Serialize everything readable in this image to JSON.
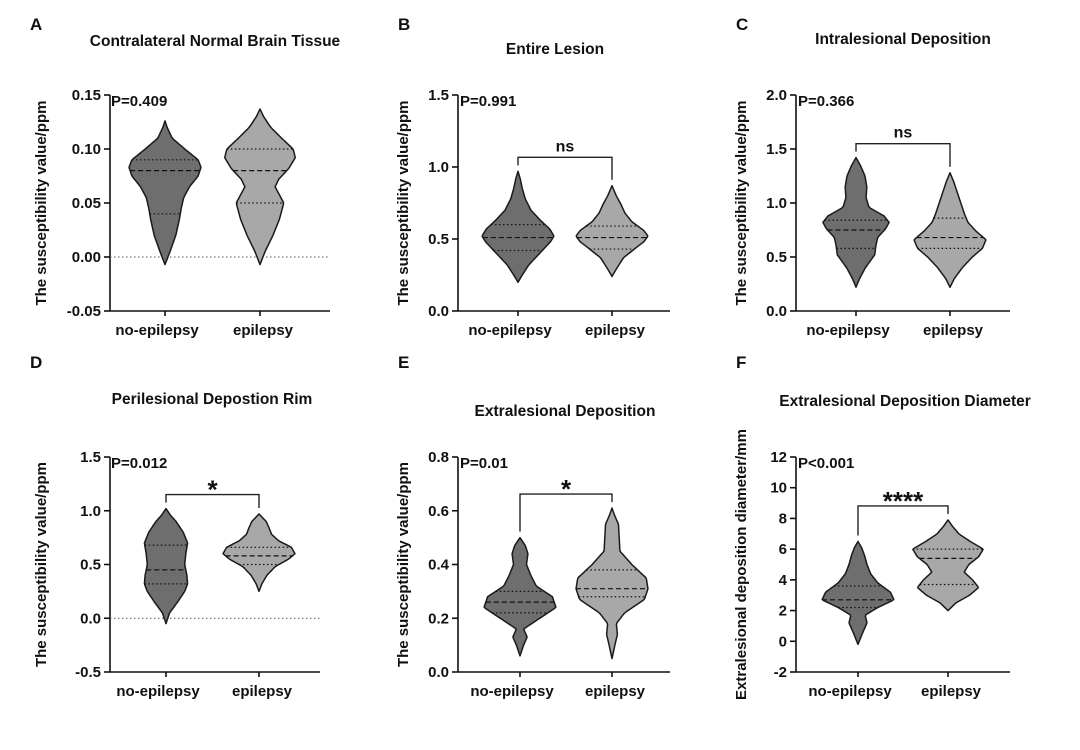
{
  "figure": {
    "colors": {
      "no_epilepsy": "#6e6e6e",
      "epilepsy": "#a8a8a8",
      "outline": "#1a1a1a"
    }
  },
  "chart_data": [
    {
      "panel": "A",
      "type": "violin",
      "title": "Contralateral Normal Brain Tissue",
      "ylabel": "The susceptibility value/ppm",
      "categories": [
        "no-epilepsy",
        "epilepsy"
      ],
      "ylim": [
        -0.05,
        0.15
      ],
      "yticks": [
        "-0.05",
        "0.00",
        "0.05",
        "0.10",
        "0.15"
      ],
      "yticks_values": [
        -0.05,
        0.0,
        0.05,
        0.1,
        0.15
      ],
      "zero_line": true,
      "p_value": "P=0.409",
      "significance": "",
      "series": [
        {
          "min": -0.007,
          "max": 0.126,
          "q1": 0.04,
          "median": 0.08,
          "q3": 0.09,
          "profile": [
            [
              -0.007,
              0.0
            ],
            [
              0.005,
              0.14
            ],
            [
              0.02,
              0.3
            ],
            [
              0.035,
              0.4
            ],
            [
              0.045,
              0.45
            ],
            [
              0.055,
              0.52
            ],
            [
              0.065,
              0.68
            ],
            [
              0.075,
              0.92
            ],
            [
              0.083,
              1.0
            ],
            [
              0.09,
              0.92
            ],
            [
              0.1,
              0.55
            ],
            [
              0.11,
              0.2
            ],
            [
              0.12,
              0.06
            ],
            [
              0.126,
              0.0
            ]
          ]
        },
        {
          "min": -0.007,
          "max": 0.137,
          "q1": 0.05,
          "median": 0.08,
          "q3": 0.1,
          "profile": [
            [
              -0.007,
              0.0
            ],
            [
              0.005,
              0.14
            ],
            [
              0.02,
              0.36
            ],
            [
              0.035,
              0.54
            ],
            [
              0.05,
              0.66
            ],
            [
              0.06,
              0.5
            ],
            [
              0.065,
              0.42
            ],
            [
              0.072,
              0.52
            ],
            [
              0.082,
              0.8
            ],
            [
              0.092,
              0.98
            ],
            [
              0.1,
              0.92
            ],
            [
              0.11,
              0.6
            ],
            [
              0.12,
              0.3
            ],
            [
              0.13,
              0.1
            ],
            [
              0.137,
              0.0
            ]
          ]
        }
      ]
    },
    {
      "panel": "B",
      "type": "violin",
      "title": "Entire Lesion",
      "ylabel": "The susceptibility value/ppm",
      "categories": [
        "no-epilepsy",
        "epilepsy"
      ],
      "ylim": [
        0.0,
        1.5
      ],
      "yticks": [
        "0.0",
        "0.5",
        "1.0",
        "1.5"
      ],
      "yticks_values": [
        0.0,
        0.5,
        1.0,
        1.5
      ],
      "zero_line": false,
      "p_value": "P=0.991",
      "significance": "ns",
      "series": [
        {
          "min": 0.2,
          "max": 0.97,
          "q1": 0.42,
          "median": 0.51,
          "q3": 0.6,
          "profile": [
            [
              0.2,
              0.0
            ],
            [
              0.25,
              0.12
            ],
            [
              0.32,
              0.3
            ],
            [
              0.4,
              0.6
            ],
            [
              0.48,
              0.9
            ],
            [
              0.52,
              1.0
            ],
            [
              0.57,
              0.88
            ],
            [
              0.63,
              0.62
            ],
            [
              0.7,
              0.36
            ],
            [
              0.78,
              0.2
            ],
            [
              0.85,
              0.12
            ],
            [
              0.92,
              0.06
            ],
            [
              0.97,
              0.0
            ]
          ]
        },
        {
          "min": 0.24,
          "max": 0.87,
          "q1": 0.43,
          "median": 0.51,
          "q3": 0.59,
          "profile": [
            [
              0.24,
              0.0
            ],
            [
              0.3,
              0.14
            ],
            [
              0.37,
              0.32
            ],
            [
              0.43,
              0.62
            ],
            [
              0.48,
              0.88
            ],
            [
              0.52,
              1.0
            ],
            [
              0.56,
              0.88
            ],
            [
              0.62,
              0.55
            ],
            [
              0.68,
              0.36
            ],
            [
              0.74,
              0.25
            ],
            [
              0.8,
              0.12
            ],
            [
              0.87,
              0.0
            ]
          ]
        }
      ]
    },
    {
      "panel": "C",
      "type": "violin",
      "title": "Intralesional Deposition",
      "ylabel": "The susceptibility value/ppm",
      "categories": [
        "no-epilepsy",
        "epilepsy"
      ],
      "ylim": [
        0.0,
        2.0
      ],
      "yticks": [
        "0.0",
        "0.5",
        "1.0",
        "1.5",
        "2.0"
      ],
      "yticks_values": [
        0.0,
        0.5,
        1.0,
        1.5,
        2.0
      ],
      "zero_line": false,
      "p_value": "P=0.366",
      "significance": "ns",
      "series": [
        {
          "min": 0.22,
          "max": 1.42,
          "q1": 0.58,
          "median": 0.75,
          "q3": 0.84,
          "profile": [
            [
              0.22,
              0.0
            ],
            [
              0.3,
              0.1
            ],
            [
              0.4,
              0.26
            ],
            [
              0.52,
              0.52
            ],
            [
              0.6,
              0.55
            ],
            [
              0.68,
              0.6
            ],
            [
              0.76,
              0.82
            ],
            [
              0.82,
              0.92
            ],
            [
              0.88,
              0.78
            ],
            [
              0.96,
              0.36
            ],
            [
              1.05,
              0.28
            ],
            [
              1.15,
              0.3
            ],
            [
              1.25,
              0.25
            ],
            [
              1.35,
              0.12
            ],
            [
              1.42,
              0.0
            ]
          ]
        },
        {
          "min": 0.22,
          "max": 1.28,
          "q1": 0.58,
          "median": 0.68,
          "q3": 0.86,
          "profile": [
            [
              0.22,
              0.0
            ],
            [
              0.3,
              0.12
            ],
            [
              0.4,
              0.34
            ],
            [
              0.5,
              0.62
            ],
            [
              0.58,
              0.9
            ],
            [
              0.66,
              1.0
            ],
            [
              0.74,
              0.72
            ],
            [
              0.82,
              0.5
            ],
            [
              0.9,
              0.4
            ],
            [
              1.0,
              0.3
            ],
            [
              1.1,
              0.2
            ],
            [
              1.2,
              0.1
            ],
            [
              1.28,
              0.0
            ]
          ]
        }
      ]
    },
    {
      "panel": "D",
      "type": "violin",
      "title": "Perilesional Depostion Rim",
      "ylabel": "The susceptibility value/ppm",
      "categories": [
        "no-epilepsy",
        "epilepsy"
      ],
      "ylim": [
        -0.5,
        1.5
      ],
      "yticks": [
        "-0.5",
        "0.0",
        "0.5",
        "1.0",
        "1.5"
      ],
      "yticks_values": [
        -0.5,
        0.0,
        0.5,
        1.0,
        1.5
      ],
      "zero_line": true,
      "p_value": "P=0.012",
      "significance": "*",
      "series": [
        {
          "min": -0.05,
          "max": 1.02,
          "q1": 0.32,
          "median": 0.45,
          "q3": 0.68,
          "profile": [
            [
              -0.05,
              0.0
            ],
            [
              0.05,
              0.1
            ],
            [
              0.15,
              0.32
            ],
            [
              0.25,
              0.52
            ],
            [
              0.32,
              0.6
            ],
            [
              0.4,
              0.58
            ],
            [
              0.5,
              0.52
            ],
            [
              0.6,
              0.55
            ],
            [
              0.7,
              0.6
            ],
            [
              0.8,
              0.48
            ],
            [
              0.9,
              0.28
            ],
            [
              0.96,
              0.12
            ],
            [
              1.02,
              0.0
            ]
          ]
        },
        {
          "min": 0.25,
          "max": 0.97,
          "q1": 0.5,
          "median": 0.58,
          "q3": 0.66,
          "profile": [
            [
              0.25,
              0.0
            ],
            [
              0.32,
              0.08
            ],
            [
              0.4,
              0.22
            ],
            [
              0.48,
              0.45
            ],
            [
              0.55,
              0.82
            ],
            [
              0.6,
              1.0
            ],
            [
              0.66,
              0.9
            ],
            [
              0.72,
              0.55
            ],
            [
              0.78,
              0.35
            ],
            [
              0.84,
              0.28
            ],
            [
              0.9,
              0.2
            ],
            [
              0.97,
              0.0
            ]
          ]
        }
      ]
    },
    {
      "panel": "E",
      "type": "violin",
      "title": "Extralesional Deposition",
      "ylabel": "The susceptibility value/ppm",
      "categories": [
        "no-epilepsy",
        "epilepsy"
      ],
      "ylim": [
        0.0,
        0.8
      ],
      "yticks": [
        "0.0",
        "0.2",
        "0.4",
        "0.6",
        "0.8"
      ],
      "yticks_values": [
        0.0,
        0.2,
        0.4,
        0.6,
        0.8
      ],
      "zero_line": false,
      "p_value": "P=0.01",
      "significance": "*",
      "series": [
        {
          "min": 0.06,
          "max": 0.5,
          "q1": 0.22,
          "median": 0.26,
          "q3": 0.3,
          "profile": [
            [
              0.06,
              0.0
            ],
            [
              0.1,
              0.1
            ],
            [
              0.13,
              0.2
            ],
            [
              0.16,
              0.1
            ],
            [
              0.2,
              0.55
            ],
            [
              0.24,
              1.0
            ],
            [
              0.28,
              0.9
            ],
            [
              0.32,
              0.45
            ],
            [
              0.36,
              0.3
            ],
            [
              0.4,
              0.18
            ],
            [
              0.44,
              0.22
            ],
            [
              0.47,
              0.15
            ],
            [
              0.5,
              0.0
            ]
          ]
        },
        {
          "min": 0.05,
          "max": 0.61,
          "q1": 0.28,
          "median": 0.31,
          "q3": 0.38,
          "profile": [
            [
              0.05,
              0.0
            ],
            [
              0.1,
              0.08
            ],
            [
              0.14,
              0.15
            ],
            [
              0.18,
              0.12
            ],
            [
              0.22,
              0.35
            ],
            [
              0.27,
              0.9
            ],
            [
              0.31,
              1.0
            ],
            [
              0.35,
              0.95
            ],
            [
              0.4,
              0.55
            ],
            [
              0.45,
              0.22
            ],
            [
              0.5,
              0.2
            ],
            [
              0.55,
              0.18
            ],
            [
              0.58,
              0.08
            ],
            [
              0.61,
              0.0
            ]
          ]
        }
      ]
    },
    {
      "panel": "F",
      "type": "violin",
      "title": "Extralesional Deposition Diameter",
      "ylabel": "Extralesional deposition diameter/mm",
      "categories": [
        "no-epilepsy",
        "epilepsy"
      ],
      "ylim": [
        -2,
        12
      ],
      "yticks": [
        "-2",
        "0",
        "2",
        "4",
        "6",
        "8",
        "10",
        "12"
      ],
      "yticks_values": [
        -2,
        0,
        2,
        4,
        6,
        8,
        10,
        12
      ],
      "zero_line": false,
      "p_value": "P<0.001",
      "significance": "****",
      "series": [
        {
          "min": -0.2,
          "max": 6.5,
          "q1": 2.2,
          "median": 2.7,
          "q3": 3.6,
          "profile": [
            [
              -0.2,
              0.0
            ],
            [
              0.5,
              0.12
            ],
            [
              1.2,
              0.25
            ],
            [
              1.7,
              0.2
            ],
            [
              2.2,
              0.55
            ],
            [
              2.7,
              1.0
            ],
            [
              3.2,
              0.9
            ],
            [
              3.8,
              0.55
            ],
            [
              4.4,
              0.35
            ],
            [
              5.0,
              0.25
            ],
            [
              5.6,
              0.18
            ],
            [
              6.1,
              0.1
            ],
            [
              6.5,
              0.0
            ]
          ]
        },
        {
          "min": 2.0,
          "max": 7.9,
          "q1": 3.7,
          "median": 5.4,
          "q3": 6.0,
          "profile": [
            [
              2.0,
              0.0
            ],
            [
              2.5,
              0.22
            ],
            [
              3.0,
              0.6
            ],
            [
              3.5,
              0.85
            ],
            [
              4.0,
              0.68
            ],
            [
              4.5,
              0.45
            ],
            [
              5.0,
              0.58
            ],
            [
              5.5,
              0.85
            ],
            [
              6.0,
              0.98
            ],
            [
              6.5,
              0.62
            ],
            [
              7.0,
              0.3
            ],
            [
              7.5,
              0.12
            ],
            [
              7.9,
              0.0
            ]
          ]
        }
      ]
    }
  ]
}
